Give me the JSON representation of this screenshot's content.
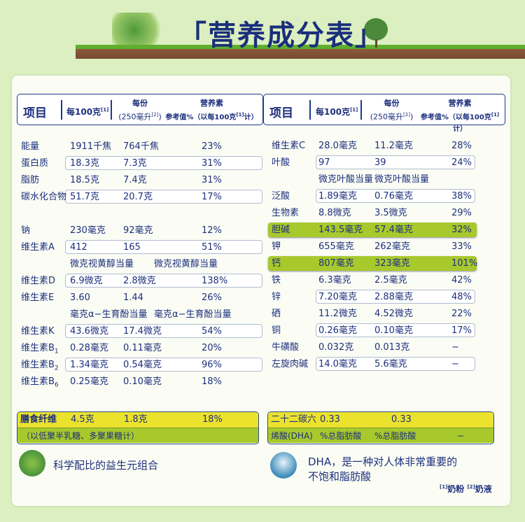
{
  "title": "「营养成分表」",
  "colors": {
    "text": "#1d2f7c",
    "highlight": "#a8c92c",
    "yellow": "#ebe22e",
    "background": "#dcefc0"
  },
  "header": {
    "item": "项目",
    "per100": "每100克",
    "per100_sup": "[1]",
    "serving_l1": "每份",
    "serving_l2": "(250毫升",
    "serving_sup": "[2]",
    "serving_close": ")",
    "nrv_l1": "营养素",
    "nrv_l2": "参考值%（以每100克",
    "nrv_sup": "[1]",
    "nrv_close": "计）"
  },
  "left_rows": [
    {
      "name": "能量",
      "v1": "1911千焦",
      "v2": "764千焦",
      "pct": "23%"
    },
    {
      "name": "蛋白质",
      "v1": "18.3克",
      "v2": "7.3克",
      "pct": "31%",
      "boxed": true
    },
    {
      "name": "脂肪",
      "v1": "18.5克",
      "v2": "7.4克",
      "pct": "31%"
    },
    {
      "name": "碳水化合物",
      "v1": "51.7克",
      "v2": "20.7克",
      "pct": "17%",
      "boxed": true
    },
    {
      "blank": true
    },
    {
      "name": "钠",
      "v1": "230毫克",
      "v2": "92毫克",
      "pct": "12%"
    },
    {
      "name": "维生素A",
      "v1": "412",
      "v2": "165",
      "pct": "51%",
      "boxed": true
    },
    {
      "note1": "微克视黄醇当量",
      "note2": "微克视黄醇当量"
    },
    {
      "name": "维生素D",
      "v1": "6.9微克",
      "v2": "2.8微克",
      "pct": "138%",
      "boxed": true
    },
    {
      "name": "维生素E",
      "v1": "3.60",
      "v2": "1.44",
      "pct": "26%"
    },
    {
      "note1": "毫克α−生育酚当量",
      "note2": "毫克α−生育酚当量"
    },
    {
      "name": "维生素K",
      "v1": "43.6微克",
      "v2": "17.4微克",
      "pct": "54%",
      "boxed": true
    },
    {
      "name": "维生素B",
      "sub": "1",
      "v1": "0.28毫克",
      "v2": "0.11毫克",
      "pct": "20%"
    },
    {
      "name": "维生素B",
      "sub": "2",
      "v1": "1.34毫克",
      "v2": "0.54毫克",
      "pct": "96%",
      "boxed": true
    },
    {
      "name": "维生素B",
      "sub": "6",
      "v1": "0.25毫克",
      "v2": "0.10毫克",
      "pct": "18%"
    }
  ],
  "right_rows": [
    {
      "name": "维生素C",
      "v1": "28.0毫克",
      "v2": "11.2毫克",
      "pct": "28%"
    },
    {
      "name": "叶酸",
      "v1": "97",
      "v2": "39",
      "pct": "24%",
      "boxed": true
    },
    {
      "note1": "微克叶酸当量",
      "note2": "微克叶酸当量"
    },
    {
      "name": "泛酸",
      "v1": "1.89毫克",
      "v2": "0.76毫克",
      "pct": "38%",
      "boxed": true
    },
    {
      "name": "生物素",
      "v1": "8.8微克",
      "v2": "3.5微克",
      "pct": "29%"
    },
    {
      "name": "胆碱",
      "v1": "143.5毫克",
      "v2": "57.4毫克",
      "pct": "32%",
      "highlight": true
    },
    {
      "name": "钾",
      "v1": "655毫克",
      "v2": "262毫克",
      "pct": "33%"
    },
    {
      "name": "钙",
      "v1": "807毫克",
      "v2": "323毫克",
      "pct": "101%",
      "highlight": true
    },
    {
      "name": "铁",
      "v1": "6.3毫克",
      "v2": "2.5毫克",
      "pct": "42%"
    },
    {
      "name": "锌",
      "v1": "7.20毫克",
      "v2": "2.88毫克",
      "pct": "48%",
      "boxed": true
    },
    {
      "name": "硒",
      "v1": "11.2微克",
      "v2": "4.52微克",
      "pct": "22%"
    },
    {
      "name": "铜",
      "v1": "0.26毫克",
      "v2": "0.10毫克",
      "pct": "17%",
      "boxed": true
    },
    {
      "name": "牛磺酸",
      "v1": "0.032克",
      "v2": "0.013克",
      "pct": "−"
    },
    {
      "name": "左旋肉碱",
      "v1": "14.0毫克",
      "v2": "5.6毫克",
      "pct": "−",
      "boxed": true
    }
  ],
  "fiber": {
    "name": "膳食纤维",
    "v1": "4.5克",
    "v2": "1.8克",
    "pct": "18%",
    "note": "（以低聚半乳糖、多聚果糖计）"
  },
  "dha": {
    "name": "二十二碳六",
    "v1": "0.33",
    "v2": "0.33",
    "name2": "烯酸(DHA)",
    "u1": "%总脂肪酸",
    "u2": "%总脂肪酸",
    "pct": "−"
  },
  "prebiotic_text": "科学配比的益生元组合",
  "dha_text_l1": "DHA，是一种对人体非常重要的",
  "dha_text_l2": "不饱和脂肪酸",
  "footnote": {
    "s1": "[1]",
    "t1": "奶粉",
    "s2": "[2]",
    "t2": "奶液"
  }
}
